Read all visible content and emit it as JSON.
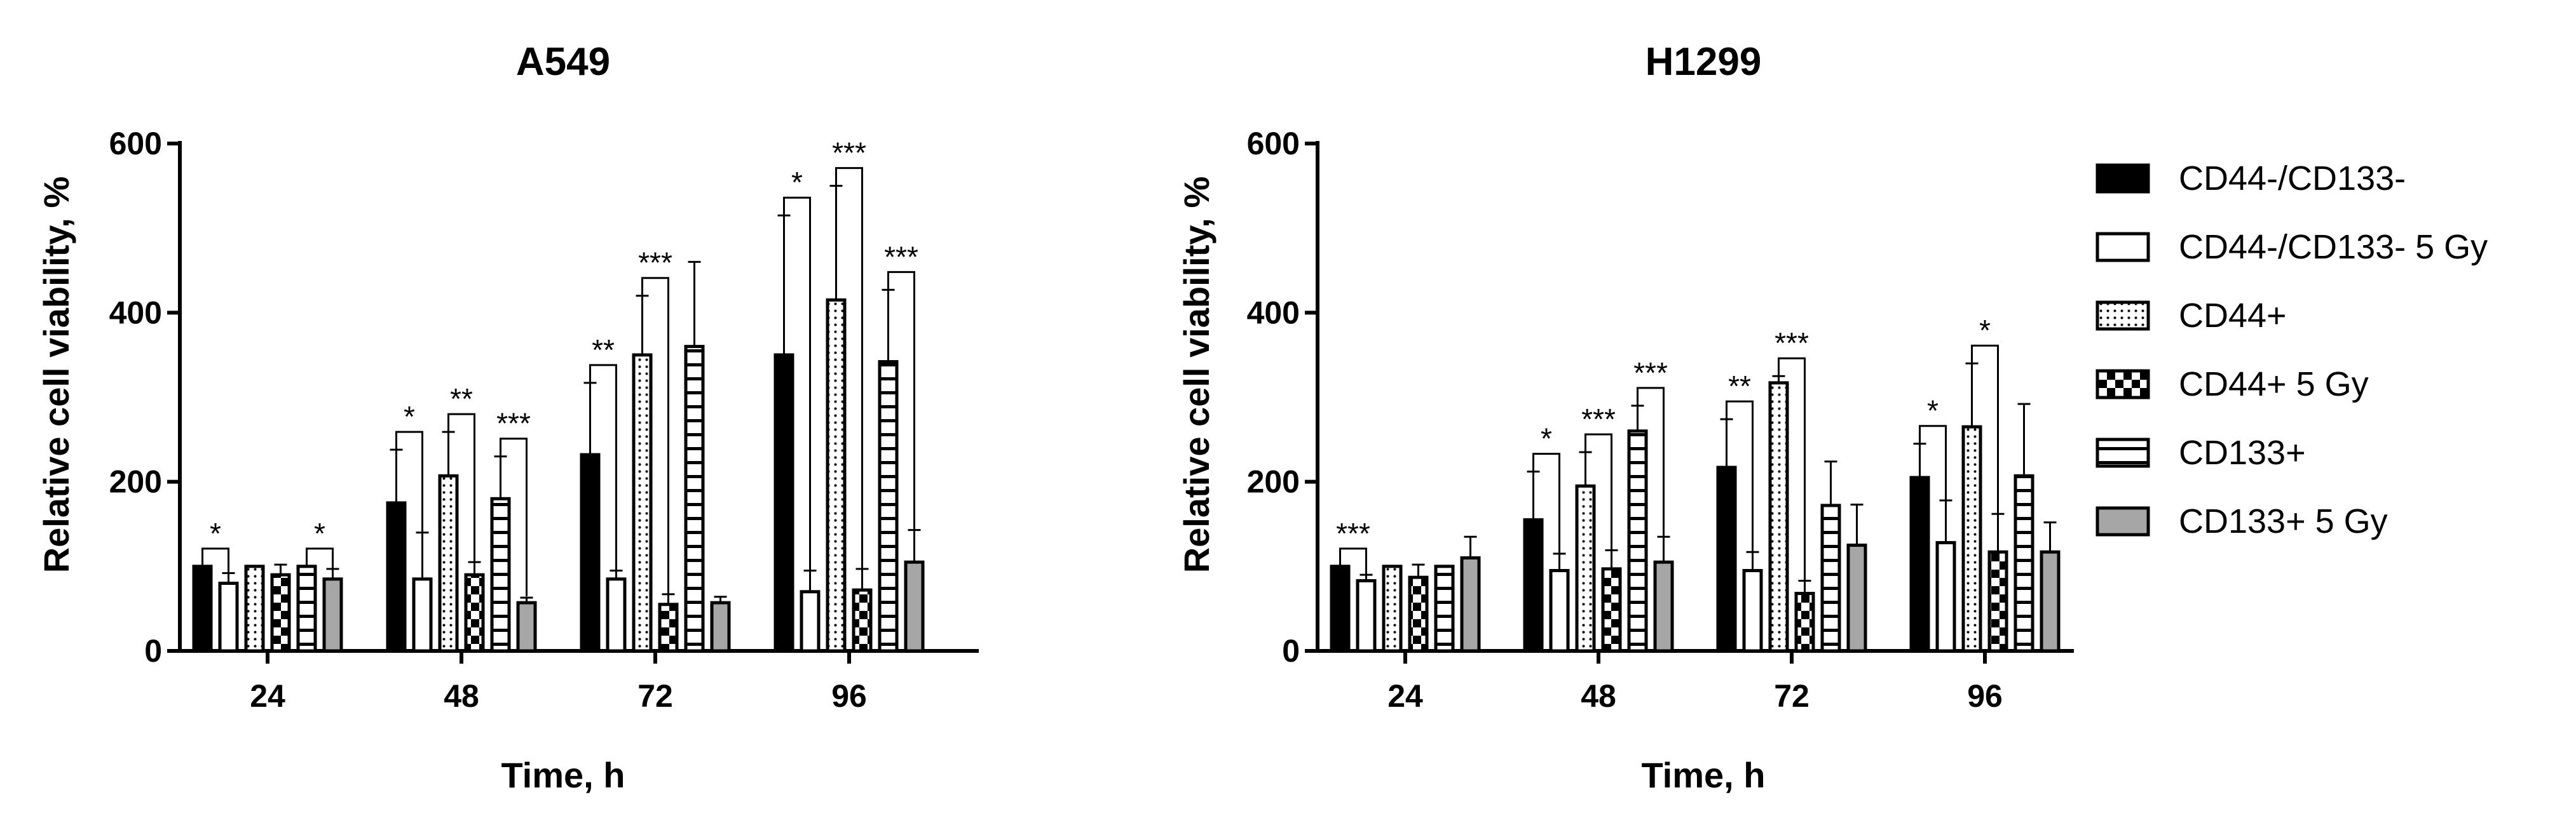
{
  "chart_data": [
    {
      "type": "bar",
      "title": "A549",
      "xlabel": "Time, h",
      "ylabel": "Relative cell viability, %",
      "ylim": [
        0,
        600
      ],
      "yticks": [
        "0",
        "200",
        "400",
        "600"
      ],
      "categories": [
        "24",
        "48",
        "72",
        "96"
      ],
      "series": [
        {
          "name": "CD44-/CD133-",
          "values": [
            100,
            175,
            232,
            350
          ],
          "errors": [
            0,
            63,
            85,
            165
          ]
        },
        {
          "name": "CD44-/CD133- 5 Gy",
          "values": [
            80,
            85,
            85,
            70
          ],
          "errors": [
            12,
            55,
            10,
            25
          ]
        },
        {
          "name": "CD44+",
          "values": [
            100,
            207,
            350,
            415
          ],
          "errors": [
            0,
            52,
            70,
            135
          ]
        },
        {
          "name": "CD44+ 5 Gy",
          "values": [
            90,
            90,
            55,
            72
          ],
          "errors": [
            12,
            15,
            12,
            25
          ]
        },
        {
          "name": "CD133+",
          "values": [
            100,
            180,
            360,
            342
          ],
          "errors": [
            0,
            50,
            100,
            85
          ]
        },
        {
          "name": "CD133+ 5 Gy",
          "values": [
            85,
            57,
            57,
            105
          ],
          "errors": [
            12,
            6,
            7,
            38
          ]
        }
      ],
      "significance": [
        {
          "category": "24",
          "from": 0,
          "to": 1,
          "label": "*"
        },
        {
          "category": "24",
          "from": 4,
          "to": 5,
          "label": "*"
        },
        {
          "category": "48",
          "from": 0,
          "to": 1,
          "label": "*"
        },
        {
          "category": "48",
          "from": 2,
          "to": 3,
          "label": "**"
        },
        {
          "category": "48",
          "from": 4,
          "to": 5,
          "label": "***"
        },
        {
          "category": "72",
          "from": 0,
          "to": 1,
          "label": "**"
        },
        {
          "category": "72",
          "from": 2,
          "to": 3,
          "label": "***"
        },
        {
          "category": "96",
          "from": 0,
          "to": 1,
          "label": "*"
        },
        {
          "category": "96",
          "from": 2,
          "to": 3,
          "label": "***"
        },
        {
          "category": "96",
          "from": 4,
          "to": 5,
          "label": "***"
        }
      ]
    },
    {
      "type": "bar",
      "title": "H1299",
      "xlabel": "Time, h",
      "ylabel": "Relative cell viability, %",
      "ylim": [
        0,
        600
      ],
      "yticks": [
        "0",
        "200",
        "400",
        "600"
      ],
      "categories": [
        "24",
        "48",
        "72",
        "96"
      ],
      "series": [
        {
          "name": "CD44-/CD133-",
          "values": [
            100,
            155,
            217,
            205
          ],
          "errors": [
            0,
            57,
            57,
            40
          ]
        },
        {
          "name": "CD44-/CD133- 5 Gy",
          "values": [
            83,
            95,
            95,
            128
          ],
          "errors": [
            7,
            20,
            22,
            50
          ]
        },
        {
          "name": "CD44+",
          "values": [
            100,
            195,
            317,
            265
          ],
          "errors": [
            0,
            40,
            8,
            75
          ]
        },
        {
          "name": "CD44+ 5 Gy",
          "values": [
            87,
            97,
            68,
            117
          ],
          "errors": [
            15,
            22,
            15,
            45
          ]
        },
        {
          "name": "CD133+",
          "values": [
            100,
            260,
            172,
            207
          ],
          "errors": [
            0,
            30,
            52,
            85
          ]
        },
        {
          "name": "CD133+ 5 Gy",
          "values": [
            110,
            105,
            125,
            117
          ],
          "errors": [
            25,
            30,
            48,
            35
          ]
        }
      ],
      "significance": [
        {
          "category": "24",
          "from": 0,
          "to": 1,
          "label": "***"
        },
        {
          "category": "48",
          "from": 0,
          "to": 1,
          "label": "*"
        },
        {
          "category": "48",
          "from": 2,
          "to": 3,
          "label": "***"
        },
        {
          "category": "48",
          "from": 4,
          "to": 5,
          "label": "***"
        },
        {
          "category": "72",
          "from": 0,
          "to": 1,
          "label": "**"
        },
        {
          "category": "72",
          "from": 2,
          "to": 3,
          "label": "***"
        },
        {
          "category": "96",
          "from": 0,
          "to": 1,
          "label": "*"
        },
        {
          "category": "96",
          "from": 2,
          "to": 3,
          "label": "*"
        }
      ]
    }
  ],
  "legend": {
    "placement": "right",
    "items": [
      {
        "label": "CD44-/CD133-",
        "fill": "solid-black"
      },
      {
        "label": "CD44-/CD133- 5 Gy",
        "fill": "white"
      },
      {
        "label": "CD44+",
        "fill": "dotted"
      },
      {
        "label": "CD44+ 5 Gy",
        "fill": "checkered"
      },
      {
        "label": "CD133+",
        "fill": "horizontal-stripes"
      },
      {
        "label": "CD133+ 5 Gy",
        "fill": "solid-gray"
      }
    ]
  },
  "colors": {
    "black": "#000000",
    "gray": "#a6a6a6",
    "white": "#ffffff"
  }
}
